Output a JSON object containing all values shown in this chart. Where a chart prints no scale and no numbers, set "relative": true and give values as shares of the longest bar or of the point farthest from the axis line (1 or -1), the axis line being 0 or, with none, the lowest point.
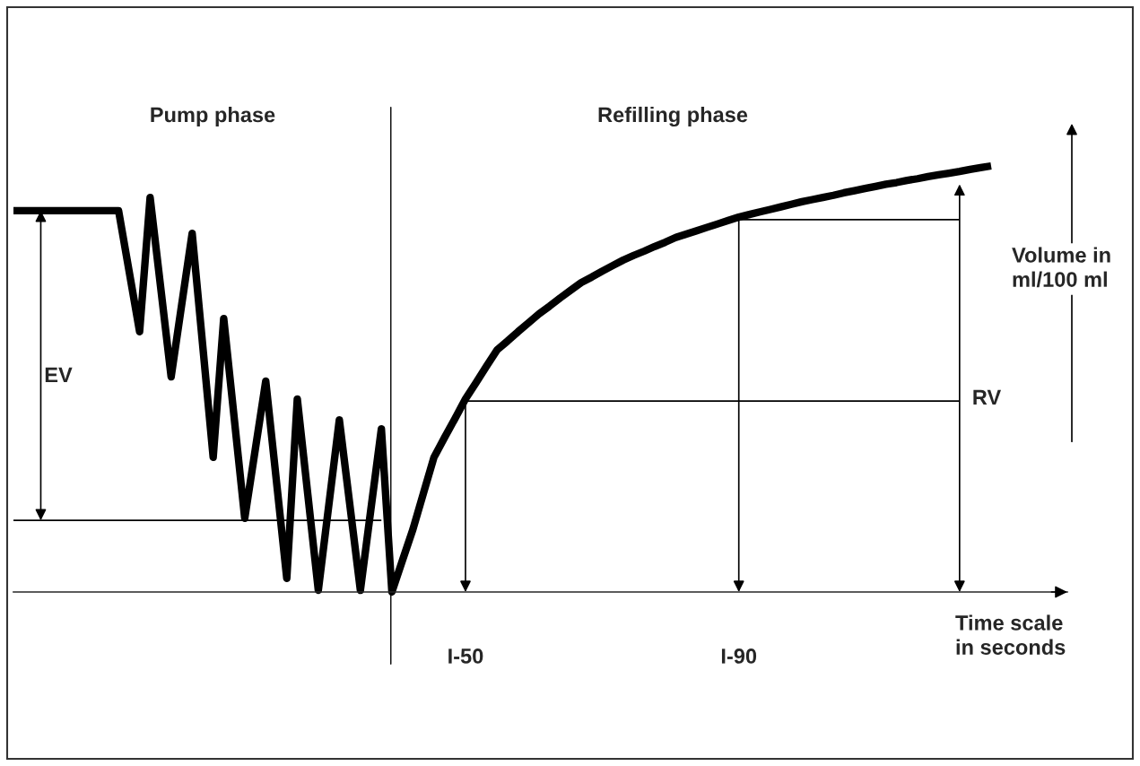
{
  "chart_data": {
    "type": "line",
    "relative": true,
    "xlabel": "Time scale\nin seconds",
    "ylabel": "Volume in\nml/100 ml",
    "marker": "none",
    "line_style": "solid",
    "categories": [
      null,
      null,
      null,
      null,
      null,
      null,
      null,
      null,
      null,
      null,
      null,
      null,
      null,
      null,
      null,
      null,
      null,
      null,
      null,
      null,
      null,
      null,
      null,
      null,
      null,
      null,
      null,
      null,
      null,
      null,
      null,
      null,
      null,
      null,
      null,
      null,
      null,
      null,
      null,
      null,
      null,
      null,
      null,
      "I-50",
      null,
      null,
      null,
      null,
      null,
      null,
      null,
      null,
      null,
      null,
      null,
      null,
      null,
      null,
      null,
      null,
      null,
      null,
      null,
      null,
      null,
      null,
      null,
      null,
      null,
      "I-90",
      null,
      null,
      null,
      null,
      null,
      null,
      null,
      null,
      null,
      null,
      null,
      null,
      null,
      null,
      null,
      null,
      null,
      null,
      null,
      null,
      null,
      null,
      null,
      null
    ],
    "series": [
      {
        "color": "#000000",
        "values": [
          0.895,
          0.895,
          0.895,
          0.895,
          0.895,
          0.895,
          0.895,
          0.895,
          0.895,
          0.895,
          0.895,
          0.753,
          0.611,
          0.926,
          0.716,
          0.505,
          0.674,
          0.842,
          0.579,
          0.316,
          0.642,
          0.408,
          0.173,
          0.334,
          0.495,
          0.264,
          0.032,
          0.453,
          0.229,
          0.004,
          0.204,
          0.404,
          0.204,
          0.004,
          0.194,
          0.383,
          0,
          0.074,
          0.147,
          0.232,
          0.316,
          0.362,
          0.407,
          0.453,
          0.491,
          0.53,
          0.568,
          0.589,
          0.611,
          0.632,
          0.653,
          0.671,
          0.69,
          0.708,
          0.726,
          0.739,
          0.753,
          0.766,
          0.779,
          0.79,
          0.8,
          0.811,
          0.821,
          0.832,
          0.84,
          0.848,
          0.856,
          0.864,
          0.872,
          0.88,
          0.886,
          0.892,
          0.898,
          0.904,
          0.91,
          0.916,
          0.921,
          0.926,
          0.931,
          0.937,
          0.942,
          0.947,
          0.952,
          0.957,
          0.961,
          0.966,
          0.97,
          0.975,
          0.979,
          0.983,
          0.987,
          0.992,
          0.996,
          1
        ]
      },
      {
        "color": "#000000",
        "values": [
          0.168,
          0.168,
          0.168,
          0.168,
          0.168,
          0.168,
          0.168,
          0.168,
          0.168,
          0.168,
          0.168,
          0.168,
          0.168,
          0.168,
          0.168,
          0.168,
          0.168,
          0.168,
          0.168,
          0.168,
          0.168,
          0.168,
          0.168,
          0.168,
          0.168,
          0.168,
          0.168,
          0.168,
          0.168,
          0.168,
          0.168,
          0.168,
          0.168,
          0.168,
          0.168,
          0.168,
          null,
          null,
          null,
          null,
          null,
          null,
          null,
          null,
          null,
          null,
          null,
          null,
          null,
          null,
          null,
          null,
          null,
          null,
          null,
          null,
          null,
          null,
          null,
          null,
          null,
          null,
          null,
          null,
          null,
          null,
          null,
          null,
          null,
          null,
          null,
          null,
          null,
          null,
          null,
          null,
          null,
          null,
          null,
          null,
          null,
          null,
          null,
          null,
          null,
          null,
          null,
          null,
          null,
          null,
          null,
          null,
          null,
          null
        ]
      },
      {
        "color": "#000000",
        "values": [
          null,
          null,
          null,
          null,
          null,
          null,
          null,
          null,
          null,
          null,
          null,
          null,
          null,
          null,
          null,
          null,
          null,
          null,
          null,
          null,
          null,
          null,
          null,
          null,
          null,
          null,
          null,
          null,
          null,
          null,
          null,
          null,
          null,
          null,
          null,
          null,
          null,
          null,
          null,
          null,
          null,
          null,
          null,
          0.448,
          0.448,
          0.448,
          0.448,
          0.448,
          0.448,
          0.448,
          0.448,
          0.448,
          0.448,
          0.448,
          0.448,
          0.448,
          0.448,
          0.448,
          0.448,
          0.448,
          0.448,
          0.448,
          0.448,
          0.448,
          0.448,
          0.448,
          0.448,
          0.448,
          0.448,
          0.448,
          0.448,
          0.448,
          0.448,
          0.448,
          0.448,
          0.448,
          0.448,
          0.448,
          0.448,
          0.448,
          0.448,
          0.448,
          0.448,
          0.448,
          0.448,
          0.448,
          0.448,
          0.448,
          0.448,
          0.448,
          0.448,
          null,
          null,
          null
        ]
      },
      {
        "color": "#000000",
        "values": [
          null,
          null,
          null,
          null,
          null,
          null,
          null,
          null,
          null,
          null,
          null,
          null,
          null,
          null,
          null,
          null,
          null,
          null,
          null,
          null,
          null,
          null,
          null,
          null,
          null,
          null,
          null,
          null,
          null,
          null,
          null,
          null,
          null,
          null,
          null,
          null,
          null,
          null,
          null,
          null,
          null,
          null,
          null,
          null,
          null,
          null,
          null,
          null,
          null,
          null,
          null,
          null,
          null,
          null,
          null,
          null,
          null,
          null,
          null,
          null,
          null,
          null,
          null,
          null,
          null,
          null,
          null,
          null,
          null,
          0.874,
          0.874,
          0.874,
          0.874,
          0.874,
          0.874,
          0.874,
          0.874,
          0.874,
          0.874,
          0.874,
          0.874,
          0.874,
          0.874,
          0.874,
          0.874,
          0.874,
          0.874,
          0.874,
          0.874,
          0.874,
          0.874,
          null,
          null,
          null
        ]
      }
    ],
    "annotations": [
      "Pump phase",
      "Refilling phase",
      "EV",
      "RV"
    ]
  }
}
